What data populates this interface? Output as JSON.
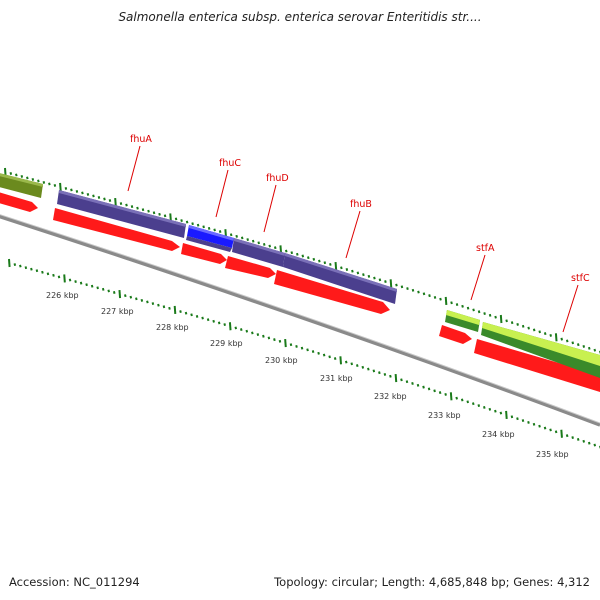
{
  "title": "Salmonella enterica subsp. enterica serovar Enteritidis str....",
  "footer": {
    "accession": "Accession: NC_011294",
    "summary": "Topology: circular; Length: 4,685,848 bp; Genes: 4,312"
  },
  "colors": {
    "cds_red": "#ff1a1a",
    "purple": "#4b3f8e",
    "blue": "#1a1aff",
    "olive": "#6b8a1e",
    "green_dark": "#3a8a2a",
    "green_light": "#a8e830",
    "tick_green": "#1a7a1a",
    "backbone": "#8a8a8a"
  },
  "genes": [
    {
      "name": "fhuA",
      "color": "purple"
    },
    {
      "name": "fhuC",
      "color": "blue"
    },
    {
      "name": "fhuD",
      "color": "purple"
    },
    {
      "name": "fhuB",
      "color": "purple"
    },
    {
      "name": "stfA",
      "color": "green"
    },
    {
      "name": "stfC",
      "color": "green"
    }
  ],
  "kbp_ticks": [
    "226 kbp",
    "227 kbp",
    "228 kbp",
    "229 kbp",
    "230 kbp",
    "231 kbp",
    "232 kbp",
    "233 kbp",
    "234 kbp",
    "235 kbp"
  ]
}
